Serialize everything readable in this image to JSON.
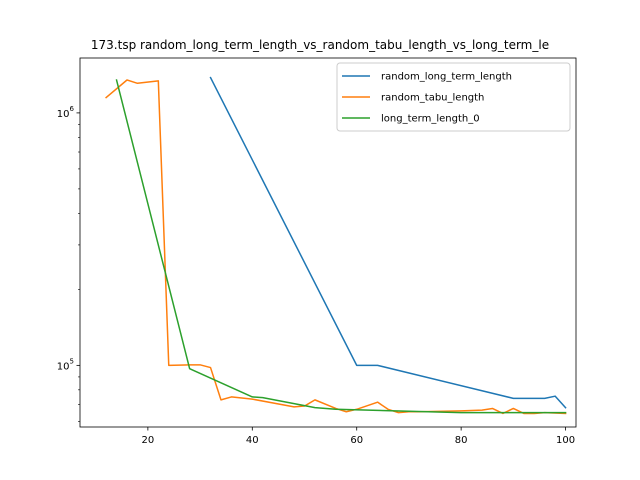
{
  "chart_data": {
    "type": "line",
    "title": "173.tsp  random_long_term_length_vs_random_tabu_length_vs_long_term_le",
    "xlabel": "",
    "ylabel": "",
    "xlim": [
      7,
      102
    ],
    "ylim": [
      57000,
      1650000
    ],
    "yscale": "log",
    "x_ticks": [
      20,
      40,
      60,
      80,
      100
    ],
    "x_tick_labels": [
      "20",
      "40",
      "60",
      "80",
      "100"
    ],
    "y_ticks": [
      100000,
      1000000
    ],
    "y_tick_labels": [
      "10^5",
      "10^6"
    ],
    "grid": false,
    "legend_position": "upper right",
    "series": [
      {
        "name": "random_long_term_length",
        "color": "#1f77b4",
        "x": [
          32,
          60,
          64,
          90,
          96,
          98,
          100
        ],
        "y": [
          1380000,
          100000,
          100000,
          74000,
          74000,
          75500,
          68000
        ]
      },
      {
        "name": "random_tabu_length",
        "color": "#ff7f0e",
        "x": [
          12,
          16,
          18,
          22,
          24,
          28,
          30,
          32,
          34,
          36,
          40,
          48,
          50,
          52,
          56,
          58,
          60,
          64,
          66,
          68,
          70,
          72,
          80,
          84,
          86,
          88,
          90,
          92,
          94,
          96,
          100
        ],
        "y": [
          1150000,
          1350000,
          1310000,
          1340000,
          100000,
          100500,
          100500,
          98000,
          73000,
          75000,
          73500,
          68500,
          69000,
          73000,
          67500,
          65500,
          67000,
          71500,
          67000,
          65000,
          65500,
          65500,
          66000,
          66500,
          67500,
          64500,
          67500,
          64500,
          64500,
          65000,
          64500
        ]
      },
      {
        "name": "long_term_length_0",
        "color": "#2ca02c",
        "x": [
          14,
          28,
          40,
          42,
          52,
          56,
          80,
          100
        ],
        "y": [
          1350000,
          97000,
          75000,
          74500,
          68000,
          67000,
          65000,
          65000
        ]
      }
    ]
  }
}
